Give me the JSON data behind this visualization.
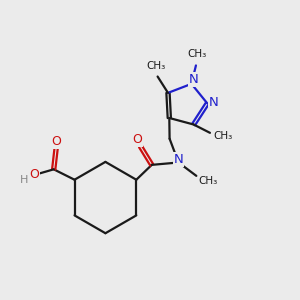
{
  "bg_color": "#ebebeb",
  "bond_color": "#1a1a1a",
  "N_color": "#2020cc",
  "O_color": "#cc1010",
  "H_color": "#888888",
  "lw": 1.6,
  "dbo": 0.055,
  "xlim": [
    0,
    10
  ],
  "ylim": [
    0,
    10
  ]
}
